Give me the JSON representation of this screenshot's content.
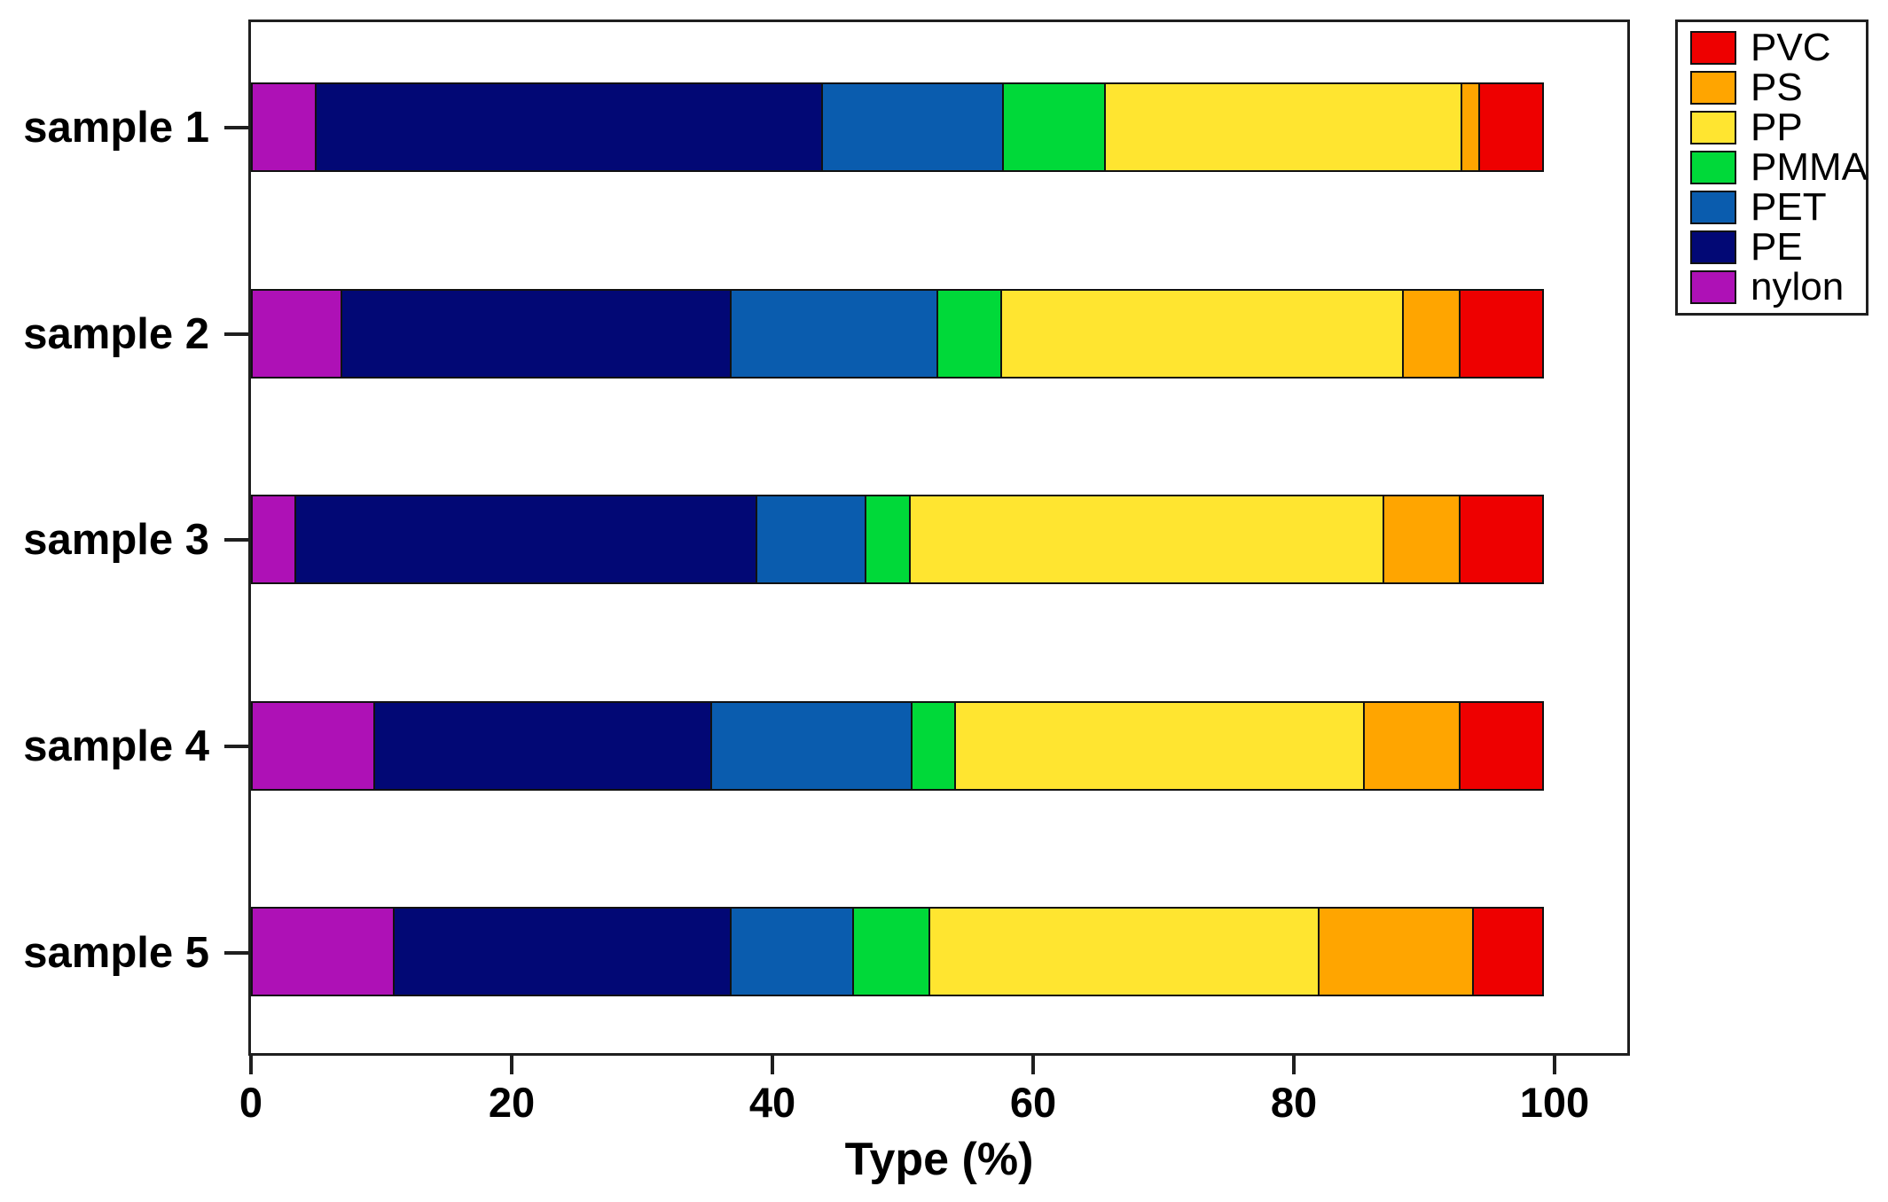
{
  "chart_data": {
    "type": "bar",
    "variant": "horizontal-stacked",
    "title": "",
    "xlabel": "Type (%)",
    "ylabel": "",
    "xlim": [
      0,
      107
    ],
    "x_ticks": [
      0,
      20,
      40,
      60,
      80,
      100
    ],
    "grid": false,
    "categories": [
      "sample 1",
      "sample 2",
      "sample 3",
      "sample 4",
      "sample 5"
    ],
    "stack_order_left_to_right": [
      "nylon",
      "PE",
      "PET",
      "PMMA",
      "PP",
      "PS",
      "PVC"
    ],
    "series": [
      {
        "name": "nylon",
        "color": "#AE11B6",
        "values": [
          5,
          7,
          3.5,
          9.5,
          11
        ]
      },
      {
        "name": "PE",
        "color": "#020875",
        "values": [
          39,
          30,
          35.5,
          26,
          26
        ]
      },
      {
        "name": "PET",
        "color": "#0A5CAE",
        "values": [
          14,
          16,
          8.5,
          15.5,
          9.5
        ]
      },
      {
        "name": "PMMA",
        "color": "#00D939",
        "values": [
          8,
          5,
          3.5,
          3.5,
          6
        ]
      },
      {
        "name": "PP",
        "color": "#FFE530",
        "values": [
          27.5,
          31,
          36.5,
          31.5,
          30
        ]
      },
      {
        "name": "PS",
        "color": "#FFA500",
        "values": [
          1.5,
          4.5,
          6,
          7.5,
          12
        ]
      },
      {
        "name": "PVC",
        "color": "#EE0000",
        "values": [
          5,
          6.5,
          6.5,
          6.5,
          5.5
        ]
      }
    ],
    "legend": {
      "position": "top-right-outside",
      "entries": [
        "PVC",
        "PS",
        "PP",
        "PMMA",
        "PET",
        "PE",
        "nylon"
      ]
    }
  },
  "layout_text": {
    "x_axis_title": "Type (%)"
  }
}
